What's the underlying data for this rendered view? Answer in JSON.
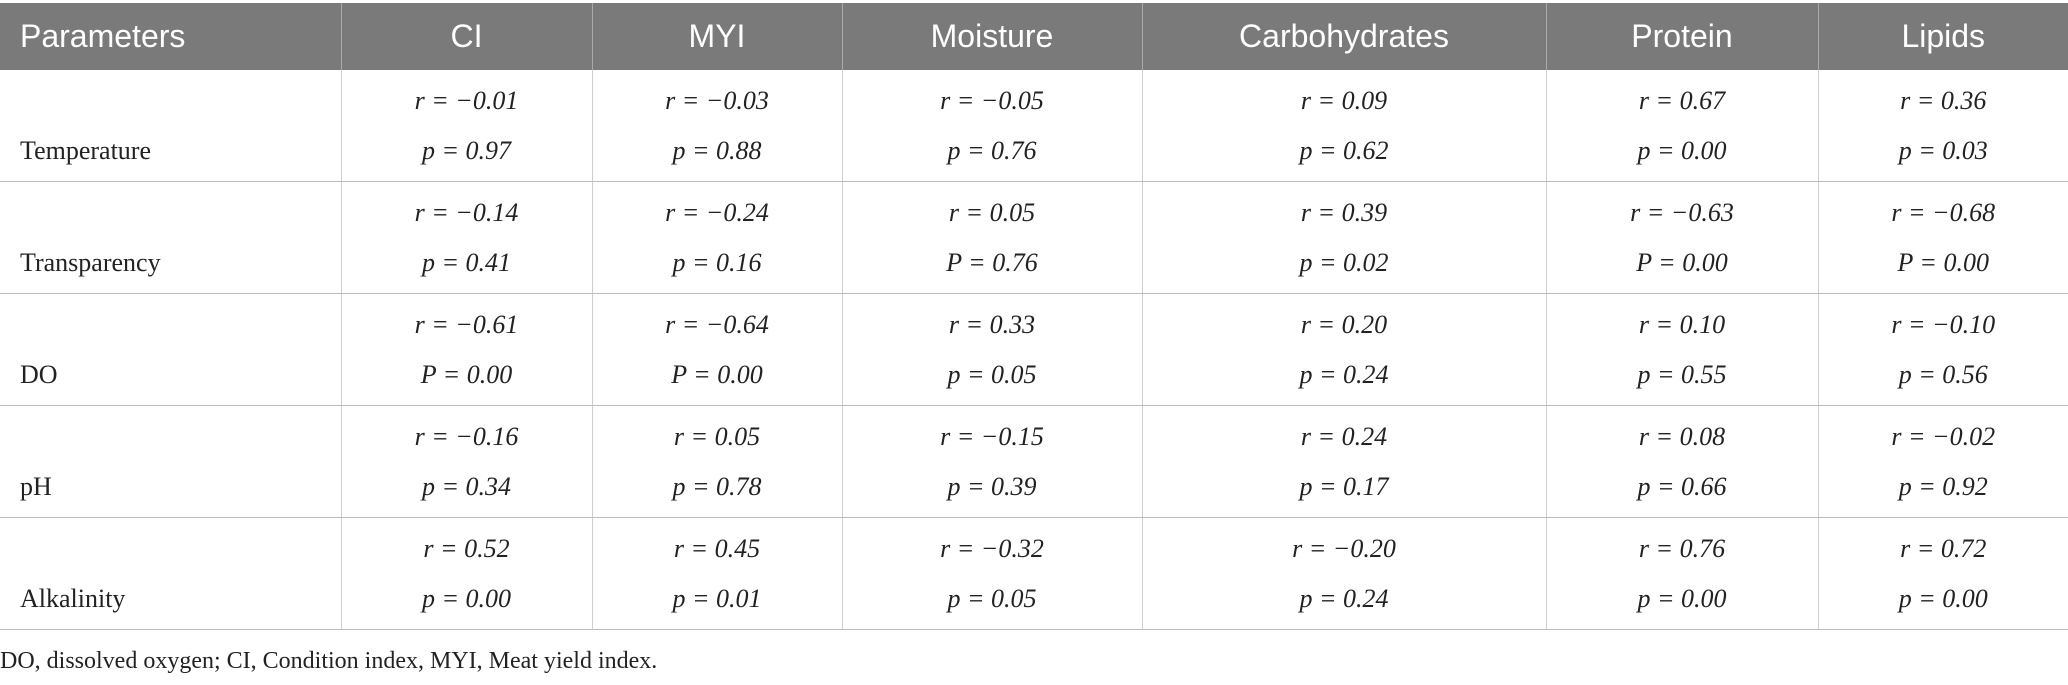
{
  "header": {
    "columns": [
      "Parameters",
      "CI",
      "MYI",
      "Moisture",
      "Carbohydrates",
      "Protein",
      "Lipids"
    ]
  },
  "rows": [
    {
      "label": "Temperature",
      "cells": [
        {
          "r": "r = −0.01",
          "p": "p = 0.97"
        },
        {
          "r": "r = −0.03",
          "p": "p = 0.88"
        },
        {
          "r": "r = −0.05",
          "p": "p = 0.76"
        },
        {
          "r": "r = 0.09",
          "p": "p = 0.62"
        },
        {
          "r": "r = 0.67",
          "p": "p = 0.00"
        },
        {
          "r": "r = 0.36",
          "p": "p = 0.03"
        }
      ]
    },
    {
      "label": "Transparency",
      "cells": [
        {
          "r": "r = −0.14",
          "p": "p = 0.41"
        },
        {
          "r": "r = −0.24",
          "p": "p = 0.16"
        },
        {
          "r": "r = 0.05",
          "p": "P = 0.76"
        },
        {
          "r": "r = 0.39",
          "p": "p = 0.02"
        },
        {
          "r": "r = −0.63",
          "p": "P = 0.00"
        },
        {
          "r": "r = −0.68",
          "p": "P = 0.00"
        }
      ]
    },
    {
      "label": "DO",
      "cells": [
        {
          "r": "r = −0.61",
          "p": "P = 0.00"
        },
        {
          "r": "r = −0.64",
          "p": "P = 0.00"
        },
        {
          "r": "r = 0.33",
          "p": "p = 0.05"
        },
        {
          "r": "r = 0.20",
          "p": "p = 0.24"
        },
        {
          "r": "r = 0.10",
          "p": "p = 0.55"
        },
        {
          "r": "r = −0.10",
          "p": "p = 0.56"
        }
      ]
    },
    {
      "label": "pH",
      "cells": [
        {
          "r": "r = −0.16",
          "p": "p = 0.34"
        },
        {
          "r": "r = 0.05",
          "p": "p = 0.78"
        },
        {
          "r": "r = −0.15",
          "p": "p = 0.39"
        },
        {
          "r": "r = 0.24",
          "p": "p = 0.17"
        },
        {
          "r": "r = 0.08",
          "p": "p = 0.66"
        },
        {
          "r": "r = −0.02",
          "p": "p = 0.92"
        }
      ]
    },
    {
      "label": "Alkalinity",
      "cells": [
        {
          "r": "r = 0.52",
          "p": "p = 0.00"
        },
        {
          "r": "r = 0.45",
          "p": "p = 0.01"
        },
        {
          "r": "r = −0.32",
          "p": "p = 0.05"
        },
        {
          "r": "r = −0.20",
          "p": "p = 0.24"
        },
        {
          "r": "r = 0.76",
          "p": "p = 0.00"
        },
        {
          "r": "r = 0.72",
          "p": "p = 0.00"
        }
      ]
    }
  ],
  "footnote": "DO, dissolved oxygen; CI, Condition index, MYI, Meat yield index."
}
